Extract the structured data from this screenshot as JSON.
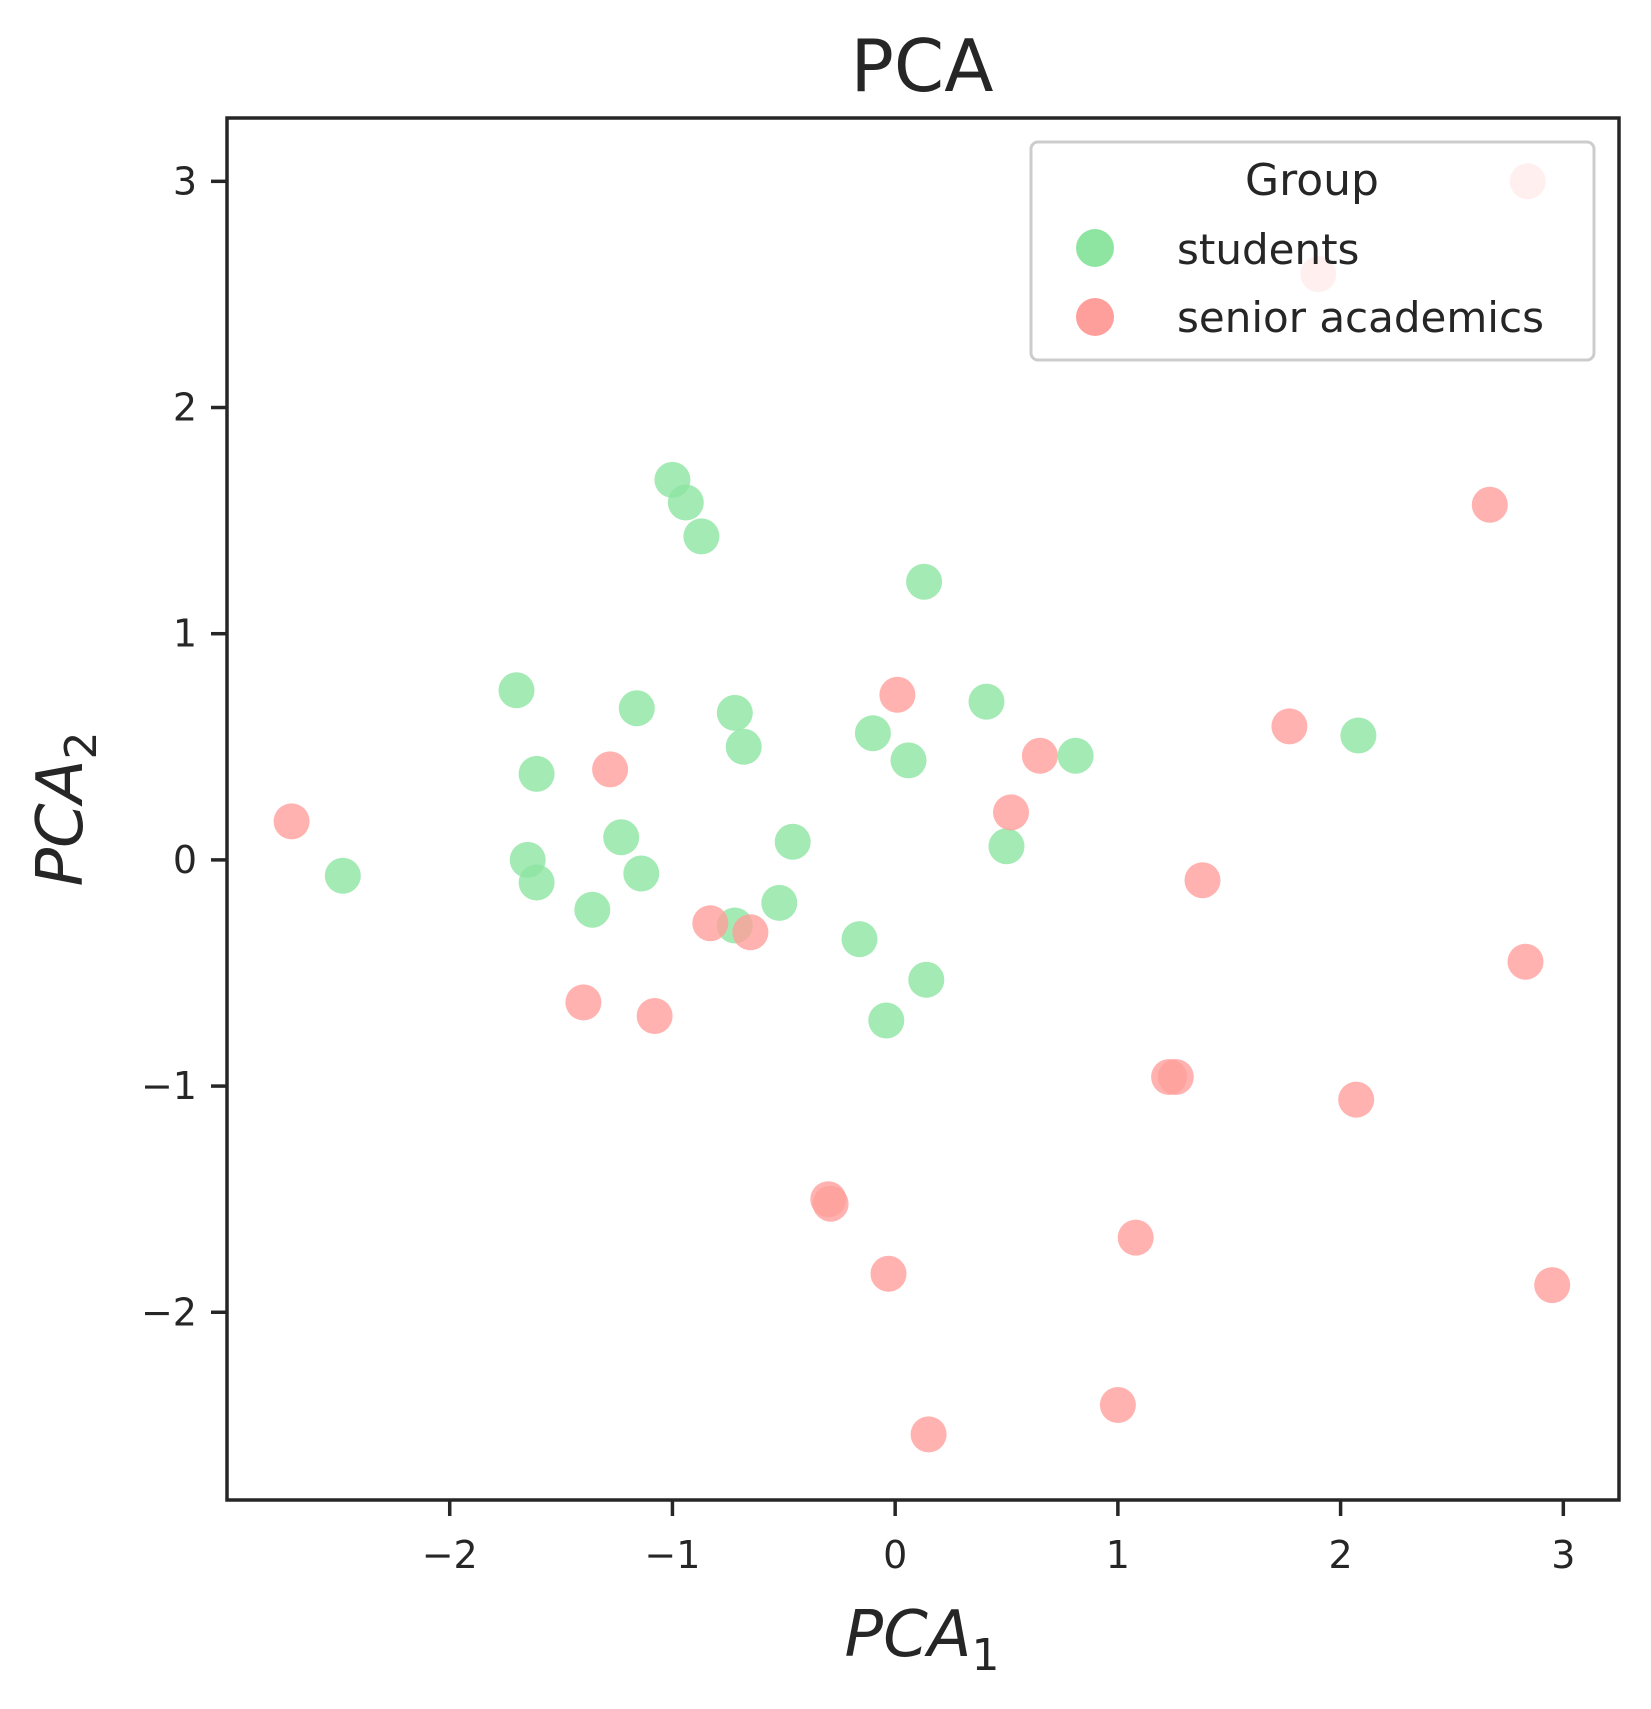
{
  "chart_data": {
    "type": "scatter",
    "title": "PCA",
    "xlabel": "PCA",
    "xlabel_sub": "1",
    "ylabel": "PCA",
    "ylabel_sub": "2",
    "xlim": [
      -3.0,
      3.25
    ],
    "ylim": [
      -2.83,
      3.28
    ],
    "x_ticks": [
      -2,
      -1,
      0,
      1,
      2,
      3
    ],
    "x_tick_labels": [
      "−2",
      "−1",
      "0",
      "1",
      "2",
      "3"
    ],
    "y_ticks": [
      -2,
      -1,
      0,
      1,
      2,
      3
    ],
    "y_tick_labels": [
      "−2",
      "−1",
      "0",
      "1",
      "2",
      "3"
    ],
    "grid": false,
    "legend": {
      "title": "Group",
      "placement": "top-right"
    },
    "series": [
      {
        "name": "students",
        "color": "#8de5a1",
        "points": [
          [
            -1.0,
            1.68
          ],
          [
            -0.94,
            1.58
          ],
          [
            -0.87,
            1.43
          ],
          [
            0.13,
            1.23
          ],
          [
            -1.7,
            0.75
          ],
          [
            -1.16,
            0.67
          ],
          [
            -0.72,
            0.65
          ],
          [
            -0.68,
            0.5
          ],
          [
            -1.61,
            0.38
          ],
          [
            -0.1,
            0.56
          ],
          [
            0.06,
            0.44
          ],
          [
            0.41,
            0.7
          ],
          [
            0.81,
            0.46
          ],
          [
            2.08,
            0.55
          ],
          [
            -1.23,
            0.1
          ],
          [
            -0.46,
            0.08
          ],
          [
            0.5,
            0.06
          ],
          [
            -2.48,
            -0.07
          ],
          [
            -1.65,
            0.0
          ],
          [
            -1.61,
            -0.1
          ],
          [
            -1.14,
            -0.06
          ],
          [
            -1.36,
            -0.22
          ],
          [
            -0.52,
            -0.19
          ],
          [
            -0.72,
            -0.29
          ],
          [
            -0.16,
            -0.35
          ],
          [
            0.14,
            -0.53
          ],
          [
            -0.04,
            -0.71
          ]
        ]
      },
      {
        "name": "senior academics",
        "color": "#ff9f9b",
        "points": [
          [
            2.84,
            3.0
          ],
          [
            1.9,
            2.59
          ],
          [
            2.67,
            1.57
          ],
          [
            0.01,
            0.73
          ],
          [
            1.77,
            0.59
          ],
          [
            0.65,
            0.46
          ],
          [
            -1.28,
            0.4
          ],
          [
            0.52,
            0.21
          ],
          [
            -2.71,
            0.17
          ],
          [
            1.38,
            -0.09
          ],
          [
            -0.83,
            -0.28
          ],
          [
            -0.65,
            -0.32
          ],
          [
            -1.4,
            -0.63
          ],
          [
            -1.08,
            -0.69
          ],
          [
            2.83,
            -0.45
          ],
          [
            1.23,
            -0.96
          ],
          [
            1.26,
            -0.96
          ],
          [
            2.07,
            -1.06
          ],
          [
            -0.3,
            -1.5
          ],
          [
            -0.29,
            -1.52
          ],
          [
            1.08,
            -1.67
          ],
          [
            -0.03,
            -1.83
          ],
          [
            2.95,
            -1.88
          ],
          [
            1.0,
            -2.41
          ],
          [
            0.15,
            -2.54
          ]
        ]
      }
    ]
  }
}
